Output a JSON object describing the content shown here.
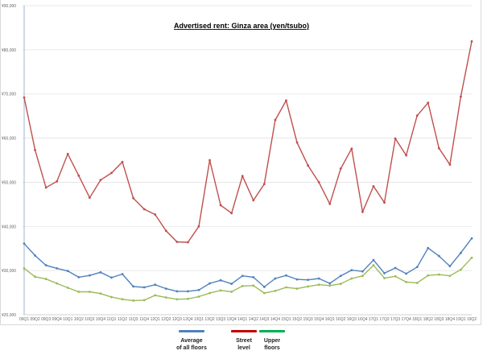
{
  "chart_data": {
    "type": "line",
    "title": "Advertised rent: Ginza area (yen/tsubo)",
    "xlabel": "",
    "ylabel": "",
    "ylim": [
      20000,
      90000
    ],
    "yticks": [
      "¥20,000",
      "¥30,000",
      "¥40,000",
      "¥50,000",
      "¥60,000",
      "¥70,000",
      "¥80,000",
      "¥90,000"
    ],
    "grid": true,
    "legend_position": "bottom",
    "categories": [
      "09Q1",
      "09Q2",
      "09Q3",
      "09Q4",
      "10Q1",
      "10Q2",
      "10Q3",
      "10Q4",
      "11Q1",
      "11Q2",
      "11Q3",
      "11Q4",
      "12Q1",
      "12Q2",
      "12Q3",
      "12Q4",
      "13Q1",
      "13Q2",
      "13Q3",
      "13Q4",
      "14Q1",
      "14Q2",
      "14Q3",
      "14Q4",
      "15Q1",
      "15Q2",
      "15Q3",
      "15Q4",
      "16Q1",
      "16Q2",
      "16Q3",
      "16Q4",
      "17Q1",
      "17Q2",
      "17Q3",
      "17Q4",
      "18Q1",
      "18Q2",
      "18Q3",
      "18Q4",
      "19Q1",
      "19Q2"
    ],
    "series": [
      {
        "name": "Average of all floors",
        "color": "#4f81bd",
        "values": [
          36100,
          33400,
          31200,
          30500,
          29900,
          28500,
          28900,
          29600,
          28400,
          29200,
          26400,
          26200,
          26800,
          25900,
          25300,
          25300,
          25600,
          27100,
          27800,
          27000,
          28800,
          28500,
          26300,
          28200,
          28900,
          28000,
          27900,
          28200,
          27100,
          28800,
          30100,
          29800,
          32400,
          29400,
          30600,
          29300,
          30800,
          35100,
          33300,
          31000,
          34000,
          37300
        ]
      },
      {
        "name": "Street level",
        "color": "#c0504d",
        "values": [
          69200,
          57300,
          48800,
          50200,
          56400,
          51500,
          46500,
          50500,
          52100,
          54600,
          46400,
          43900,
          42700,
          39000,
          36500,
          36400,
          40000,
          55000,
          44800,
          43000,
          51400,
          45900,
          49600,
          64100,
          68500,
          59000,
          53800,
          50000,
          45100,
          53100,
          57600,
          43300,
          49100,
          45400,
          59900,
          56100,
          65100,
          68000,
          57700,
          54000,
          69400,
          81900
        ]
      },
      {
        "name": "Upper floors",
        "color": "#9bbb59",
        "values": [
          30500,
          28600,
          28100,
          27100,
          26100,
          25200,
          25200,
          24800,
          24000,
          23500,
          23200,
          23300,
          24400,
          23900,
          23500,
          23600,
          24100,
          24900,
          25500,
          25200,
          26500,
          26600,
          24900,
          25400,
          26200,
          25900,
          26400,
          26800,
          26600,
          27000,
          28200,
          28800,
          31200,
          28300,
          28700,
          27400,
          27200,
          28900,
          29100,
          28800,
          30200,
          32900
        ]
      }
    ],
    "legend": [
      {
        "label_line1": "Average",
        "label_line2": "of all floors",
        "color": "#4f81bd"
      },
      {
        "label_line1": "Street",
        "label_line2": "level",
        "color": "#c00000"
      },
      {
        "label_line1": "Upper",
        "label_line2": "floors",
        "color": "#00b050"
      }
    ]
  }
}
